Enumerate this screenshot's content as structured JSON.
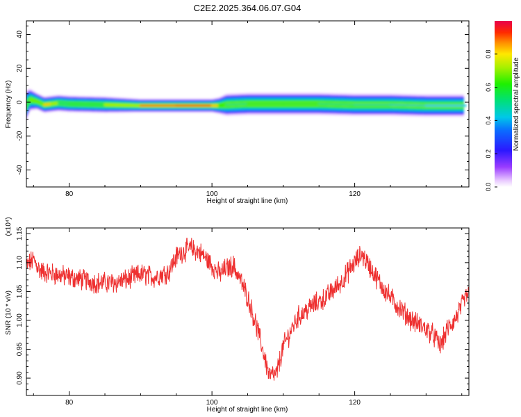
{
  "chart_data": [
    {
      "type": "heatmap",
      "title": "C2E2.2025.364.06.07.G04",
      "xlabel": "Height of straight line (km)",
      "ylabel": "Frequency (Hz)",
      "xlim": [
        74,
        136
      ],
      "ylim": [
        -50,
        48
      ],
      "x_ticks": [
        80,
        100,
        120
      ],
      "y_ticks": [
        -40,
        -20,
        0,
        20,
        40
      ],
      "colorbar": {
        "label": "Normalized spectral amplitude",
        "range": [
          0,
          1
        ],
        "ticks": [
          0.0,
          0.2,
          0.4,
          0.6,
          0.8
        ]
      },
      "ridge": {
        "x": [
          73.8,
          74.5,
          75.5,
          76.5,
          77.5,
          78.5,
          80,
          85,
          90,
          95,
          100,
          101,
          102,
          105,
          110,
          115,
          120,
          125,
          130,
          135.5
        ],
        "center_hz": [
          -3,
          1.5,
          0.5,
          -1.5,
          -1,
          -0.5,
          -1,
          -1.5,
          -2,
          -2,
          -2,
          -2,
          -1.5,
          -1,
          -1,
          -1,
          -1.5,
          -1.5,
          -2,
          -2
        ],
        "peak_amplitude": [
          0.35,
          0.75,
          0.6,
          0.75,
          0.9,
          0.55,
          0.5,
          0.6,
          0.85,
          0.92,
          0.9,
          0.75,
          0.5,
          0.55,
          0.6,
          0.55,
          0.5,
          0.5,
          0.45,
          0.4
        ],
        "halfwidth_hz": [
          6,
          4,
          3,
          3,
          3,
          3,
          3,
          3,
          2.5,
          2.5,
          2.5,
          3,
          4,
          4,
          4,
          4,
          4,
          4,
          4,
          4
        ]
      },
      "grid": false,
      "legend": "colorbar-right"
    },
    {
      "type": "line",
      "xlabel": "Height of straight line (km)",
      "ylabel": "SNR (10 * v/v)",
      "y_multiplier": "(x10⁴)",
      "xlim": [
        74,
        136
      ],
      "ylim": [
        0.87,
        1.16
      ],
      "x_ticks": [
        80,
        100,
        120
      ],
      "y_ticks": [
        0.9,
        0.95,
        1.0,
        1.05,
        1.1,
        1.15
      ],
      "series_color": "#ee3030",
      "series": [
        {
          "x": [
            74,
            75,
            76,
            78,
            80,
            82,
            84,
            86,
            88,
            90,
            92,
            94,
            95,
            96,
            97,
            98,
            99,
            100,
            101,
            102,
            103,
            104,
            105,
            106,
            107,
            108,
            109,
            110,
            112,
            114,
            116,
            118,
            120,
            121,
            122,
            124,
            126,
            128,
            130,
            131,
            132,
            133,
            134,
            135,
            136
          ],
          "values": [
            1.095,
            1.105,
            1.085,
            1.08,
            1.075,
            1.07,
            1.065,
            1.065,
            1.07,
            1.08,
            1.075,
            1.085,
            1.11,
            1.12,
            1.125,
            1.12,
            1.11,
            1.095,
            1.08,
            1.09,
            1.095,
            1.07,
            1.04,
            1.0,
            0.955,
            0.905,
            0.905,
            0.955,
            1.005,
            1.025,
            1.04,
            1.065,
            1.1,
            1.115,
            1.095,
            1.055,
            1.025,
            1.0,
            0.985,
            0.975,
            0.955,
            0.985,
            1.0,
            1.025,
            1.05
          ]
        }
      ],
      "grid": false
    }
  ],
  "colors": {
    "line": "#ee3030",
    "spectral_low": "#a040ff",
    "spectral_high": "#e8004c"
  }
}
